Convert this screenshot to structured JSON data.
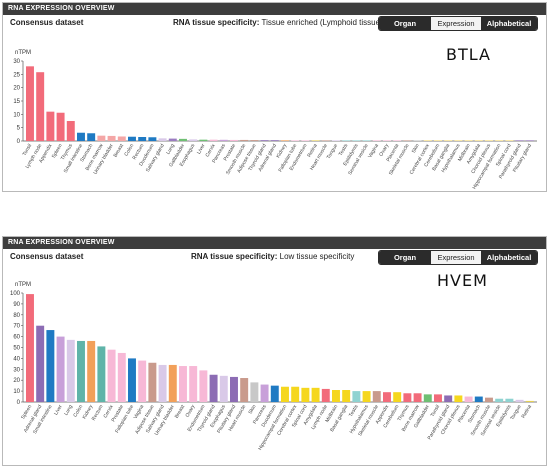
{
  "panels": [
    {
      "header": "RNA EXPRESSION OVERVIEW",
      "dataset": "Consensus dataset",
      "specificity_label": "RNA tissue specificity:",
      "specificity_value": "Tissue enriched (Lymphoid tissue)",
      "toggles": [
        "Organ",
        "Expression",
        "Alphabetical"
      ],
      "gene": "BTLA",
      "chart_data": {
        "type": "bar",
        "ylabel": "nTPM",
        "ylim": [
          0,
          30
        ],
        "yticks": [
          0,
          5,
          10,
          15,
          20,
          25,
          30
        ],
        "grid": false,
        "categories": [
          "Tonsil",
          "Lymph node",
          "Appendix",
          "Spleen",
          "Thymus",
          "Small intestine",
          "Stomach",
          "Bone marrow",
          "Urinary bladder",
          "Breast",
          "Colon",
          "Rectum",
          "Duodenum",
          "Salivary gland",
          "Lung",
          "Gallbladder",
          "Esophagus",
          "Liver",
          "Cervix",
          "Pancreas",
          "Prostate",
          "Smooth muscle",
          "Adipose tissue",
          "Thyroid gland",
          "Adrenal gland",
          "Kidney",
          "Fallopian tube",
          "Endometrium",
          "Retina",
          "Heart muscle",
          "Tongue",
          "Testis",
          "Epididymis",
          "Seminal vesicle",
          "Vagina",
          "Ovary",
          "Placenta",
          "Skeletal muscle",
          "Skin",
          "Cerebral cortex",
          "Cerebellum",
          "Basal ganglia",
          "Hypothalamus",
          "Midbrain",
          "Amygdala",
          "Choroid plexus",
          "Hippocampal formation",
          "Spinal cord",
          "Parathyroid gland",
          "Pituitary gland"
        ],
        "values": [
          28,
          25.8,
          11,
          10.6,
          7.5,
          3.1,
          2.9,
          2.0,
          1.9,
          1.7,
          1.6,
          1.5,
          1.4,
          1.0,
          0.9,
          0.8,
          0.6,
          0.5,
          0.5,
          0.45,
          0.4,
          0.4,
          0.35,
          0.3,
          0.3,
          0.25,
          0.2,
          0.2,
          0.2,
          0.15,
          0.15,
          0.1,
          0.1,
          0.1,
          0.1,
          0.1,
          0.08,
          0.08,
          0.08,
          0.05,
          0.05,
          0.05,
          0.05,
          0.05,
          0.05,
          0.05,
          0.05,
          0.05,
          0.05,
          0.05
        ],
        "colors": [
          "#f26b7a",
          "#f26b7a",
          "#f26b7a",
          "#f26b7a",
          "#f26b7a",
          "#1f7ac3",
          "#1f7ac3",
          "#f4a6a6",
          "#f4a6a6",
          "#f4a6a6",
          "#1f7ac3",
          "#1f7ac3",
          "#1f7ac3",
          "#d9c9e8",
          "#9b7cc0",
          "#6fbf73",
          "#d9c9e8",
          "#6fbf73",
          "#f7b8d6",
          "#c8a0d9",
          "#f7b8d6",
          "#c99a8c",
          "#c99a8c",
          "#8c6cb4",
          "#8c6cb4",
          "#f2a05a",
          "#f7b8d6",
          "#f7b8d6",
          "#e5cf54",
          "#c99a8c",
          "#d9c9e8",
          "#8fd3d1",
          "#8fd3d1",
          "#8fd3d1",
          "#f7b8d6",
          "#f7b8d6",
          "#f7b8d6",
          "#c99a8c",
          "#c8c8c8",
          "#f5d76e",
          "#f5d76e",
          "#f5d76e",
          "#f5d76e",
          "#f5d76e",
          "#f5d76e",
          "#f5d76e",
          "#f5d76e",
          "#f5d76e",
          "#8c6cb4",
          "#8c6cb4"
        ]
      }
    },
    {
      "header": "RNA EXPRESSION OVERVIEW",
      "dataset": "Consensus dataset",
      "specificity_label": "RNA tissue specificity:",
      "specificity_value": "Low tissue specificity",
      "toggles": [
        "Organ",
        "Expression",
        "Alphabetical"
      ],
      "gene": "HVEM",
      "chart_data": {
        "type": "bar",
        "ylabel": "nTPM",
        "ylim": [
          0,
          100
        ],
        "yticks": [
          0,
          10,
          20,
          30,
          40,
          50,
          60,
          70,
          80,
          90,
          100
        ],
        "grid": false,
        "categories": [
          "Spleen",
          "Adrenal gland",
          "Small intestine",
          "Liver",
          "Lung",
          "Colon",
          "Kidney",
          "Rectum",
          "Cervix",
          "Prostate",
          "Fallopian tube",
          "Vagina",
          "Adipose tissue",
          "Salivary gland",
          "Urinary bladder",
          "Breast",
          "Ovary",
          "Endometrium",
          "Thyroid gland",
          "Esophagus",
          "Pituitary gland",
          "Heart muscle",
          "Skin",
          "Pancreas",
          "Duodenum",
          "Hippocampal formation",
          "Cerebral cortex",
          "Spinal cord",
          "Amygdala",
          "Lymph node",
          "Midbrain",
          "Basal ganglia",
          "Testis",
          "Hypothalamus",
          "Skeletal muscle",
          "Appendix",
          "Cerebellum",
          "Thymus",
          "Bone marrow",
          "Gallbladder",
          "Tonsil",
          "Parathyroid gland",
          "Choroid plexus",
          "Placenta",
          "Stomach",
          "Smooth muscle",
          "Seminal vesicle",
          "Epididymis",
          "Tongue",
          "Retina"
        ],
        "values": [
          99,
          70,
          66,
          60,
          57,
          56,
          56,
          51,
          48,
          45,
          40,
          38,
          36,
          34,
          34,
          33,
          33,
          29,
          25,
          24,
          23,
          22,
          18,
          16,
          15,
          14,
          14,
          13,
          13,
          12,
          11,
          11,
          10,
          10,
          10,
          9,
          9,
          8,
          8,
          7,
          7,
          6,
          6,
          5,
          5,
          4,
          3,
          3,
          2,
          1
        ],
        "colors": [
          "#f26b7a",
          "#8c6cb4",
          "#1f7ac3",
          "#c8a0d9",
          "#d9c9e8",
          "#5fb4a9",
          "#f2a05a",
          "#5fb4a9",
          "#f7b8d6",
          "#f7b8d6",
          "#1f7ac3",
          "#f7b8d6",
          "#c99a8c",
          "#d9c9e8",
          "#f2a05a",
          "#f7b8d6",
          "#f7b8d6",
          "#f7b8d6",
          "#8c6cb4",
          "#d9c9e8",
          "#8c6cb4",
          "#c99a8c",
          "#c8c8c8",
          "#c8a0d9",
          "#1f7ac3",
          "#f5d71e",
          "#f5d71e",
          "#f5d71e",
          "#f5d71e",
          "#f26b7a",
          "#f5d71e",
          "#f5d71e",
          "#8fd3d1",
          "#f5d71e",
          "#c99a8c",
          "#f26b7a",
          "#f5d71e",
          "#f26b7a",
          "#f26b7a",
          "#6fbf73",
          "#f26b7a",
          "#8c6cb4",
          "#f5d71e",
          "#f7b8d6",
          "#1f7ac3",
          "#c99a8c",
          "#8fd3d1",
          "#8fd3d1",
          "#d9c9e8",
          "#e5cf54"
        ]
      }
    }
  ]
}
